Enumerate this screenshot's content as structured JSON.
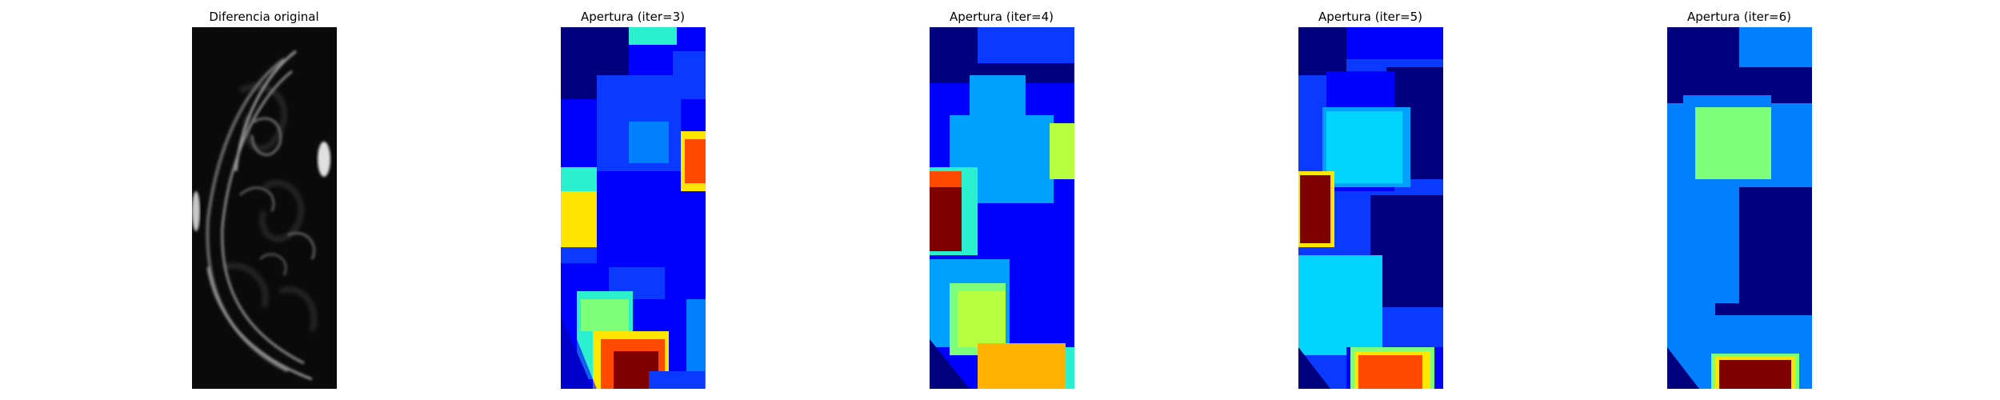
{
  "figure": {
    "panels": [
      {
        "id": "p1",
        "title": "Diferencia original",
        "colormap": "gray"
      },
      {
        "id": "p2",
        "title": "Apertura (iter=3)",
        "colormap": "jet"
      },
      {
        "id": "p3",
        "title": "Apertura (iter=4)",
        "colormap": "jet"
      },
      {
        "id": "p4",
        "title": "Apertura (iter=5)",
        "colormap": "jet"
      },
      {
        "id": "p5",
        "title": "Apertura (iter=6)",
        "colormap": "jet"
      }
    ]
  },
  "colors": {
    "jet_darkblue": "#00007f",
    "jet_blue": "#0000ff",
    "jet_medblue": "#0a3aff",
    "jet_azure": "#0080ff",
    "jet_skyblue": "#00a0ff",
    "jet_cyan": "#00d4ff",
    "jet_teal": "#2af0d0",
    "jet_green": "#7dff7a",
    "jet_lime": "#b8ff40",
    "jet_yellow": "#ffe600",
    "jet_orange": "#ffb300",
    "jet_redorange": "#ff4a00",
    "jet_darkred": "#7f0000"
  }
}
